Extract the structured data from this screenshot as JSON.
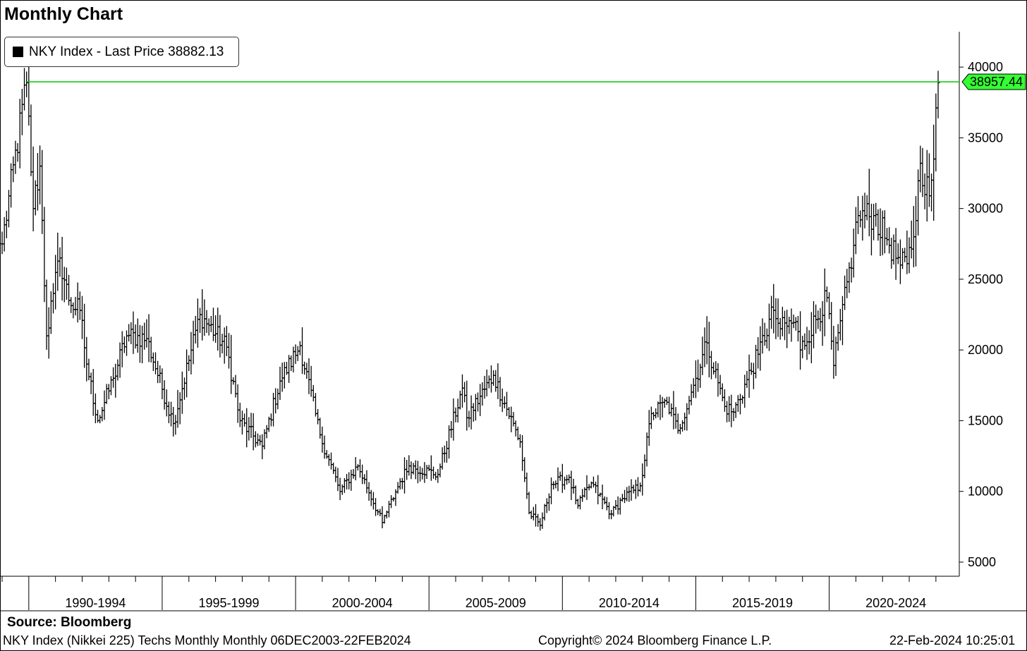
{
  "header": {
    "title": "Monthly Chart"
  },
  "legend": {
    "label": "NKY Index - Last Price 38882.13"
  },
  "footer": {
    "source": "Source:  Bloomberg",
    "description": "NKY Index (Nikkei 225) Techs Monthly  Monthly 06DEC2003-22FEB2024",
    "copyright": "Copyright© 2024 Bloomberg Finance L.P.",
    "timestamp": "22-Feb-2024 10:25:01"
  },
  "colors": {
    "price_bars": "#000000",
    "high_line": "#00cc00",
    "high_label_bg": "#33ff33"
  },
  "chart_data": {
    "type": "ohlc",
    "title": "Monthly Chart",
    "frequency": "monthly",
    "series": [
      {
        "name": "NKY Index - Last Price 38882.13"
      }
    ],
    "x_range": [
      "1989-01",
      "2024-02"
    ],
    "xticks": [
      "1990-1994",
      "1995-1999",
      "2000-2004",
      "2005-2009",
      "2010-2014",
      "2015-2019",
      "2020-2024"
    ],
    "yticks": [
      40000,
      35000,
      30000,
      25000,
      20000,
      15000,
      10000,
      5000
    ],
    "ylim": [
      4000,
      42500
    ],
    "y_axis_side": "right",
    "grid": false,
    "legend_position": "top-left",
    "reference_line": {
      "value": 38957.44,
      "label": "38957.44"
    },
    "anchors": [
      [
        "1989-01",
        27500
      ],
      [
        "1989-12",
        38900
      ],
      [
        "1990-03",
        30000
      ],
      [
        "1990-06",
        33000
      ],
      [
        "1990-09",
        21000
      ],
      [
        "1990-12",
        24000
      ],
      [
        "1991-03",
        26500
      ],
      [
        "1991-07",
        23500
      ],
      [
        "1991-12",
        22800
      ],
      [
        "1992-03",
        19000
      ],
      [
        "1992-08",
        15000
      ],
      [
        "1993-03",
        18000
      ],
      [
        "1993-09",
        21000
      ],
      [
        "1994-06",
        20800
      ],
      [
        "1995-06",
        14800
      ],
      [
        "1996-06",
        22500
      ],
      [
        "1997-06",
        20200
      ],
      [
        "1997-12",
        15000
      ],
      [
        "1998-10",
        13200
      ],
      [
        "1999-06",
        17800
      ],
      [
        "2000-03",
        20300
      ],
      [
        "2000-12",
        14000
      ],
      [
        "2001-09",
        10000
      ],
      [
        "2002-05",
        11800
      ],
      [
        "2003-04",
        7800
      ],
      [
        "2003-12",
        10700
      ],
      [
        "2004-04",
        11800
      ],
      [
        "2005-05",
        11200
      ],
      [
        "2006-04",
        17300
      ],
      [
        "2006-06",
        15200
      ],
      [
        "2007-06",
        18200
      ],
      [
        "2008-06",
        13500
      ],
      [
        "2008-10",
        8500
      ],
      [
        "2009-03",
        7600
      ],
      [
        "2009-08",
        10500
      ],
      [
        "2010-04",
        11000
      ],
      [
        "2010-08",
        9000
      ],
      [
        "2011-02",
        10600
      ],
      [
        "2011-11",
        8400
      ],
      [
        "2012-04",
        9500
      ],
      [
        "2012-12",
        10400
      ],
      [
        "2013-05",
        15500
      ],
      [
        "2013-12",
        16300
      ],
      [
        "2014-05",
        14300
      ],
      [
        "2014-12",
        17500
      ],
      [
        "2015-06",
        20500
      ],
      [
        "2016-02",
        16000
      ],
      [
        "2016-06",
        15600
      ],
      [
        "2017-05",
        19700
      ],
      [
        "2017-12",
        22800
      ],
      [
        "2018-03",
        21500
      ],
      [
        "2018-10",
        22000
      ],
      [
        "2018-12",
        20000
      ],
      [
        "2019-12",
        23700
      ],
      [
        "2020-03",
        18900
      ],
      [
        "2020-12",
        27400
      ],
      [
        "2021-02",
        29500
      ],
      [
        "2021-09",
        29500
      ],
      [
        "2022-03",
        27800
      ],
      [
        "2022-09",
        26000
      ],
      [
        "2022-12",
        26100
      ],
      [
        "2023-03",
        28000
      ],
      [
        "2023-06",
        33200
      ],
      [
        "2023-10",
        30900
      ],
      [
        "2023-12",
        33500
      ],
      [
        "2024-02",
        38900
      ]
    ]
  }
}
